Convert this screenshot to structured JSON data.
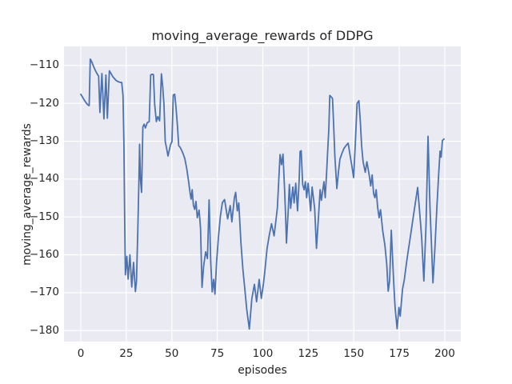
{
  "window": {
    "title": "moving_average_rewards of DDPG"
  },
  "chart_data": {
    "type": "line",
    "title": "moving_average_rewards of DDPG",
    "xlabel": "episodes",
    "ylabel": "moving_average_rewards",
    "legend": null,
    "grid": true,
    "background_color": "#eaeaf2",
    "grid_color": "#ffffff",
    "line_color": "#4c72b0",
    "line_width": 1.8,
    "x_ticks": [
      0,
      25,
      50,
      75,
      100,
      125,
      150,
      175,
      200
    ],
    "y_ticks": [
      -110,
      -120,
      -130,
      -140,
      -150,
      -160,
      -170,
      -180
    ],
    "xlim": [
      -9.23,
      208.8
    ],
    "ylim": [
      -183.05,
      -104.95
    ],
    "series": [
      {
        "name": "moving_average_rewards",
        "x": [
          0,
          1,
          2,
          3,
          3.9,
          4.6,
          5.2,
          6,
          6.9,
          7.7,
          8.4,
          9.1,
          9.8,
          10.5,
          11.6,
          12.7,
          13.8,
          14.6,
          15.7,
          16.6,
          17.5,
          18.4,
          19.3,
          20.2,
          21.3,
          22.5,
          23.2,
          23.7,
          24.1,
          24.5,
          25.3,
          26,
          27,
          28,
          29,
          30,
          30.6,
          31.3,
          31.9,
          32.3,
          32.8,
          33.4,
          34.1,
          34.8,
          35.5,
          36.5,
          37.6,
          38.4,
          39.2,
          39.9,
          40.6,
          41.5,
          42.3,
          43.3,
          44.3,
          45,
          45.7,
          46.4,
          47.2,
          47.9,
          48.6,
          49.3,
          50.1,
          50.8,
          51.6,
          52.3,
          53.1,
          53.8,
          54.6,
          55.5,
          56.2,
          57.1,
          58.2,
          59.2,
          60,
          60.6,
          61.2,
          61.9,
          62.6,
          63.3,
          64,
          65,
          65.8,
          66.6,
          67.5,
          68.6,
          69.6,
          70.5,
          71.4,
          72.2,
          73,
          73.7,
          74.6,
          75.6,
          76.7,
          77.8,
          79,
          80.7,
          82.1,
          83,
          84.4,
          85.1,
          86,
          86.8,
          88,
          89.1,
          90.1,
          91.2,
          92.6,
          94,
          95.4,
          96.6,
          98,
          99.2,
          100.4,
          101.2,
          102.3,
          103.5,
          104.8,
          106.2,
          107.2,
          108,
          108.8,
          109.5,
          110.3,
          111.1,
          112,
          112.5,
          113,
          114,
          114.6,
          115.3,
          116.5,
          117.2,
          118.1,
          119.1,
          120,
          120.5,
          121.1,
          121.9,
          122.7,
          123.4,
          124.1,
          124.9,
          126.3,
          127.1,
          128.5,
          129.5,
          130.7,
          131.5,
          132.2,
          133.6,
          134.3,
          135.2,
          135.8,
          136.3,
          136.8,
          137.6,
          138.3,
          138.8,
          139.6,
          140.7,
          141.6,
          142.4,
          143.5,
          144.6,
          145.8,
          146.9,
          148.3,
          149.1,
          149.9,
          150.9,
          151.8,
          152.8,
          153.6,
          154.3,
          155.1,
          156.3,
          157.2,
          158.5,
          159.3,
          160.1,
          160.9,
          161.6,
          162.3,
          163.1,
          163.9,
          164.7,
          165.9,
          167.1,
          168.1,
          168.9,
          169.7,
          170.6,
          171.9,
          172.7,
          173.8,
          174.8,
          175.5,
          176.8,
          177.7,
          179,
          179.9,
          181,
          182.1,
          183.6,
          185.1,
          186.5,
          187.3,
          188.5,
          189.7,
          190.8,
          191.9,
          192.6,
          193.5,
          194.6,
          195.6,
          196.6,
          197.4,
          198,
          198.7,
          199.6
        ],
        "y": [
          -117.6,
          -118.4,
          -119.2,
          -119.9,
          -120.4,
          -120.6,
          -108.3,
          -109,
          -110.1,
          -111,
          -111.7,
          -112.3,
          -112.8,
          -122.4,
          -112.1,
          -124.1,
          -112.5,
          -123.9,
          -111.4,
          -112.1,
          -112.9,
          -113.4,
          -113.9,
          -114.2,
          -114.4,
          -114.5,
          -118,
          -131,
          -150,
          -165.3,
          -160.4,
          -166.4,
          -160,
          -168.5,
          -162,
          -169.7,
          -167,
          -154,
          -141,
          -130.8,
          -140.2,
          -143.5,
          -126.2,
          -125.5,
          -126.5,
          -125.1,
          -124.8,
          -112.5,
          -112.3,
          -112.4,
          -120.3,
          -124.8,
          -123.5,
          -124.6,
          -112.2,
          -115.5,
          -120.3,
          -130.1,
          -132,
          -133.9,
          -132.4,
          -130.9,
          -130.1,
          -117.8,
          -117.6,
          -121,
          -125.9,
          -131.2,
          -131.6,
          -132.5,
          -133.3,
          -134.5,
          -137.2,
          -140.5,
          -143.5,
          -145.3,
          -142.8,
          -147,
          -148,
          -145.9,
          -150.2,
          -148.2,
          -153,
          -168.6,
          -163,
          -159.2,
          -161,
          -145.5,
          -162,
          -169.8,
          -166.5,
          -170.4,
          -162,
          -155.5,
          -149.8,
          -146.2,
          -145.4,
          -150.5,
          -147,
          -151.3,
          -144.9,
          -143.5,
          -148.4,
          -146.3,
          -156.9,
          -164,
          -168.9,
          -174.5,
          -179.6,
          -171.5,
          -167.8,
          -172.4,
          -166.5,
          -171.5,
          -167.5,
          -164,
          -158.5,
          -155,
          -151.8,
          -155,
          -151,
          -147.7,
          -140,
          -133.5,
          -136.2,
          -133.4,
          -143,
          -149.2,
          -156.9,
          -148,
          -141.4,
          -147.7,
          -142.1,
          -146.3,
          -141.1,
          -148.4,
          -140,
          -132.7,
          -132.5,
          -141.4,
          -142.8,
          -140.7,
          -144.9,
          -141.1,
          -148.4,
          -142.1,
          -147.7,
          -158.3,
          -149.2,
          -142.8,
          -145.6,
          -140.7,
          -144.9,
          -137,
          -131.2,
          -126.6,
          -117.9,
          -118.3,
          -118.7,
          -124.1,
          -134,
          -142.5,
          -138,
          -134.7,
          -133.2,
          -131.9,
          -131.1,
          -130.5,
          -134.7,
          -137,
          -139.6,
          -130,
          -120,
          -119.3,
          -124.8,
          -131.2,
          -135.4,
          -138.2,
          -135.4,
          -139,
          -141.8,
          -138.9,
          -143.9,
          -144.9,
          -142.8,
          -147.4,
          -150.2,
          -148.1,
          -153.7,
          -157.5,
          -162.5,
          -169.6,
          -166.8,
          -153.5,
          -167,
          -174,
          -179.5,
          -173.9,
          -176.2,
          -169,
          -166.8,
          -162,
          -159,
          -155.5,
          -151.9,
          -147,
          -142.2,
          -150.6,
          -155.5,
          -166.9,
          -152,
          -128.7,
          -148,
          -156.2,
          -167.4,
          -158,
          -148,
          -139,
          -132.6,
          -134.2,
          -129.8,
          -129.4
        ]
      }
    ]
  }
}
